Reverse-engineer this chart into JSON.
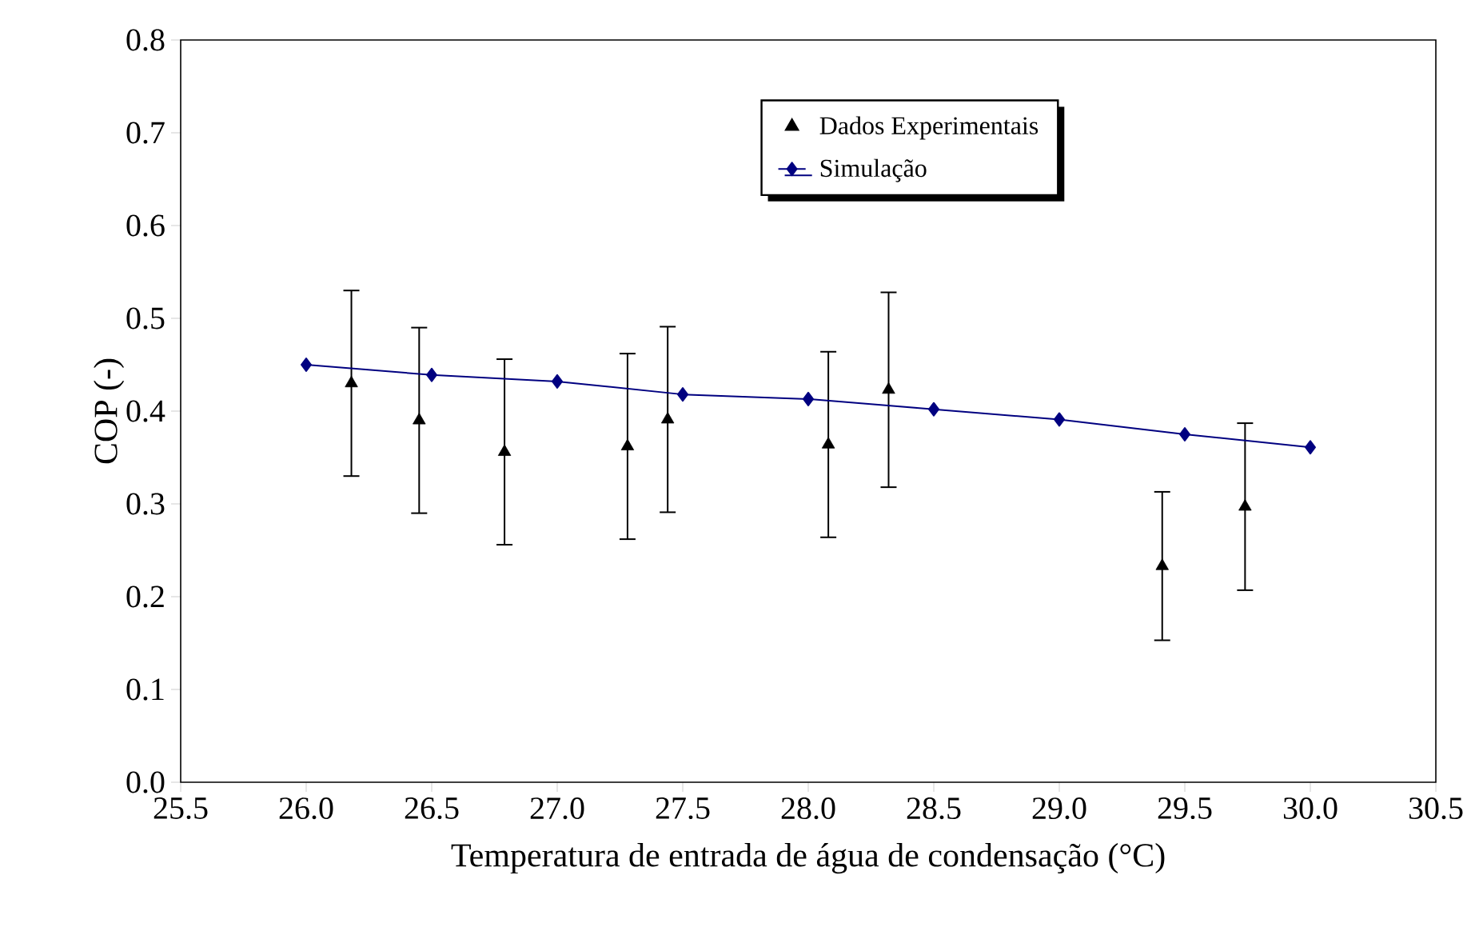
{
  "chart_data": {
    "type": "scatter",
    "xlabel": "Temperatura de entrada de água de condensação (°C)",
    "ylabel": "COP (-)",
    "series": [
      {
        "name": "Dados Experimentais",
        "marker": "triangle",
        "color": "#000000",
        "x": [
          26.18,
          26.45,
          26.79,
          27.28,
          27.44,
          28.08,
          28.32,
          29.41,
          29.74
        ],
        "values": [
          0.43,
          0.39,
          0.356,
          0.362,
          0.391,
          0.364,
          0.423,
          0.233,
          0.297
        ],
        "errors": [
          0.1,
          0.1,
          0.1,
          0.1,
          0.1,
          0.1,
          0.105,
          0.08,
          0.09
        ]
      },
      {
        "name": "Simulação",
        "type": "line",
        "marker": "diamond",
        "line_style": "solid",
        "color": "#000080",
        "x": [
          26.0,
          26.5,
          27.0,
          27.5,
          28.0,
          28.5,
          29.0,
          29.5,
          30.0
        ],
        "values": [
          0.45,
          0.439,
          0.432,
          0.418,
          0.413,
          0.402,
          0.391,
          0.375,
          0.361
        ]
      }
    ],
    "xlim": [
      25.5,
      30.5
    ],
    "xticks": [
      25.5,
      {
        "value": 26,
        "label": "26.0"
      },
      26.5,
      {
        "value": 27,
        "label": "27.0"
      },
      27.5,
      {
        "value": 28,
        "label": "28.0"
      },
      28.5,
      {
        "value": 29,
        "label": "29.0"
      },
      29.5,
      {
        "value": 30,
        "label": "30.0"
      },
      30.5
    ],
    "ylim": [
      0,
      0.8
    ],
    "yticks": [
      {
        "value": 0,
        "label": "0.0"
      },
      0.1,
      0.2,
      0.3,
      0.4,
      0.5,
      0.6,
      0.7,
      0.8
    ],
    "grid": false,
    "legend": "top right"
  }
}
